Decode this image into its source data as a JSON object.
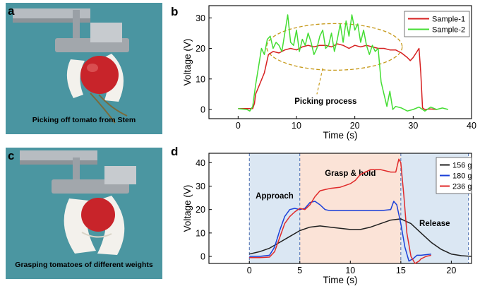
{
  "panels": {
    "a": {
      "letter": "a",
      "caption": "Picking off tomato from Stem"
    },
    "b": {
      "letter": "b"
    },
    "c": {
      "letter": "c",
      "caption": "Grasping tomatoes of different weights"
    },
    "d": {
      "letter": "d"
    }
  },
  "colors": {
    "background_teal": "#4e9aa6",
    "tomato": "#c8242a",
    "gripper": "#f3f1ec",
    "frame": "#9aa0a6"
  },
  "chart_data": [
    {
      "type": "line",
      "xlabel": "Time (s)",
      "ylabel": "Voltage (V)",
      "xlim": [
        -5,
        40
      ],
      "ylim": [
        -3,
        34
      ],
      "xticks": [
        0,
        10,
        20,
        30,
        40
      ],
      "yticks": [
        0,
        10,
        20,
        30
      ],
      "legend_position": "top-right",
      "annotation": "Picking process",
      "series": [
        {
          "name": "Sample-1",
          "color": "#d62020",
          "x": [
            0,
            2.5,
            2.8,
            3,
            4.5,
            5.2,
            6,
            7,
            8,
            9,
            10,
            11,
            12,
            13,
            14,
            15,
            16,
            17,
            18,
            19,
            20,
            21,
            22,
            23,
            24,
            25,
            26,
            27,
            28,
            29,
            29.5,
            30,
            30.5,
            31,
            31.3,
            31.6,
            32,
            33,
            34
          ],
          "y": [
            0.3,
            0.3,
            2,
            5,
            12,
            18,
            19,
            18.5,
            19.5,
            20,
            19.5,
            20.5,
            21,
            20.5,
            21,
            21,
            20.5,
            21.5,
            21,
            20,
            21,
            20.5,
            21,
            20.5,
            20,
            20,
            19.5,
            19.5,
            18.5,
            17,
            16,
            17,
            18.5,
            20,
            12,
            0.5,
            0,
            0.2,
            0
          ]
        },
        {
          "name": "Sample-2",
          "color": "#44dd33",
          "x": [
            0,
            1.5,
            2,
            2.5,
            3,
            3.5,
            4,
            4.5,
            5,
            5.5,
            6,
            6.5,
            7,
            7.5,
            8,
            8.5,
            9,
            9.5,
            10,
            10.5,
            11,
            11.5,
            12,
            12.5,
            13,
            13.5,
            14,
            14.5,
            15,
            15.5,
            16,
            16.5,
            17,
            17.5,
            18,
            18.5,
            19,
            19.5,
            20,
            20.5,
            21,
            21.5,
            22,
            22.5,
            23,
            23.5,
            24,
            24.5,
            25,
            25.5,
            26,
            26.5,
            27,
            28,
            29,
            30,
            31,
            32,
            33,
            34,
            35,
            36
          ],
          "y": [
            0.3,
            0,
            -0.5,
            1,
            8,
            14,
            20,
            18,
            23,
            24,
            20,
            22,
            21,
            19,
            25,
            31,
            22,
            21,
            26,
            19,
            23,
            21,
            25,
            22,
            18,
            20,
            24,
            26,
            20,
            21,
            25,
            19,
            23,
            28,
            22,
            29,
            24,
            31,
            26,
            28,
            22,
            26,
            21,
            18,
            21,
            19,
            20,
            9,
            5,
            1,
            6,
            0,
            1,
            0.5,
            -0.5,
            0,
            0.8,
            -0.5,
            0.8,
            0,
            0.5,
            0
          ]
        }
      ]
    },
    {
      "type": "line",
      "xlabel": "Time (s)",
      "ylabel": "Voltage (V)",
      "xlim": [
        -4,
        22
      ],
      "ylim": [
        -3,
        44
      ],
      "xticks": [
        0,
        5,
        10,
        15,
        20
      ],
      "yticks": [
        0,
        10,
        20,
        30,
        40
      ],
      "legend_position": "top-right",
      "regions": [
        {
          "label": "Approach",
          "x0": 0,
          "x1": 5,
          "color": "#dbe7f3"
        },
        {
          "label": "Grasp & hold",
          "x0": 5,
          "x1": 15,
          "color": "#fbe3d7"
        },
        {
          "label": "Release",
          "x0": 15,
          "x1": 21.7,
          "color": "#dbe7f3"
        }
      ],
      "series": [
        {
          "name": "156 g",
          "color": "#202020",
          "x": [
            0,
            1,
            2,
            3,
            4,
            5,
            6,
            7,
            8,
            9,
            10,
            11,
            12,
            13,
            14,
            15,
            16,
            17,
            18,
            19,
            20,
            21,
            22
          ],
          "y": [
            1,
            2,
            3.5,
            6,
            8.5,
            11,
            12.5,
            13,
            12.5,
            12,
            11.5,
            11.5,
            12.5,
            14,
            15.5,
            16,
            14,
            10,
            6,
            3,
            1,
            0.3,
            0
          ]
        },
        {
          "name": "180 g",
          "color": "#1a3fd8",
          "x": [
            0,
            1,
            2,
            2.5,
            3,
            3.5,
            4,
            4.5,
            5,
            5.5,
            6,
            6.5,
            7,
            7.5,
            8,
            9,
            10,
            11,
            12,
            13,
            14,
            14.3,
            14.6,
            15,
            15.4,
            15.8,
            16.2,
            16.6,
            17,
            18
          ],
          "y": [
            0,
            0,
            0.5,
            4,
            11,
            17,
            20,
            20.5,
            20,
            20.5,
            23,
            23.5,
            22,
            20,
            19.5,
            19.5,
            19.5,
            19.5,
            19.5,
            19.5,
            20,
            23.5,
            22,
            14,
            4,
            -2,
            -1,
            0.5,
            0.5,
            1
          ]
        },
        {
          "name": "236 g",
          "color": "#e02a2a",
          "x": [
            0,
            1,
            2,
            2.5,
            3,
            3.5,
            4,
            4.5,
            5,
            5.5,
            6,
            6.5,
            7,
            7.5,
            8,
            9,
            10,
            10.5,
            11,
            11.5,
            12,
            13,
            14,
            14.5,
            14.8,
            15,
            15.3,
            15.6,
            16,
            16.4,
            16.8,
            17,
            17.5,
            18
          ],
          "y": [
            -0.5,
            -0.5,
            -0.3,
            2,
            8,
            14,
            17,
            19,
            20.5,
            20,
            22,
            25.5,
            28,
            28.5,
            29,
            29.5,
            31,
            32.5,
            35,
            36,
            37,
            37,
            36,
            36,
            41.5,
            40,
            26,
            10,
            0,
            -3,
            -2,
            -1,
            0,
            0.5
          ]
        }
      ]
    }
  ]
}
